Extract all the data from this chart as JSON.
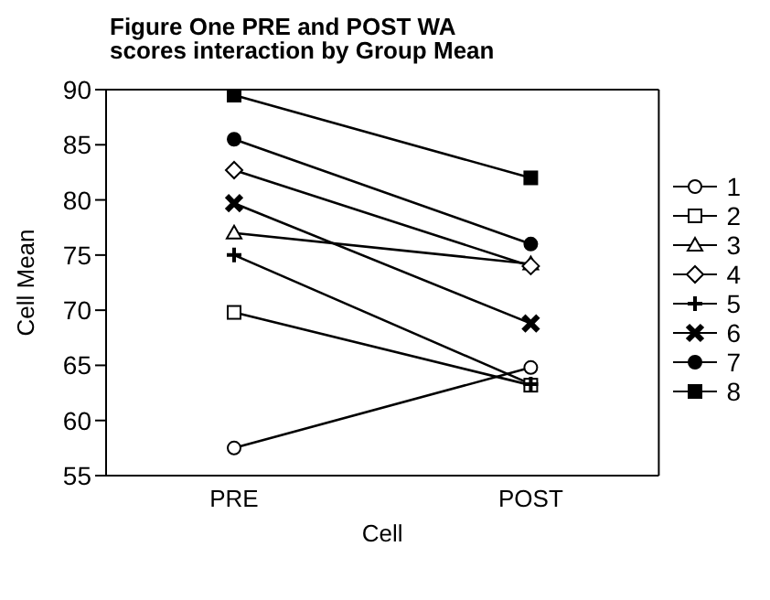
{
  "chart_data": {
    "type": "line",
    "title": "Figure One  PRE and POST WA scores interaction by Group Mean",
    "xlabel": "Cell",
    "ylabel": "Cell Mean",
    "categories": [
      "PRE",
      "POST"
    ],
    "series": [
      {
        "name": "1",
        "color": "#000000",
        "marker": "circle",
        "values": [
          57.5,
          64.8
        ]
      },
      {
        "name": "2",
        "color": "#000000",
        "marker": "square",
        "values": [
          69.8,
          63.2
        ]
      },
      {
        "name": "3",
        "color": "#000000",
        "marker": "triangle",
        "values": [
          77,
          74.2
        ]
      },
      {
        "name": "4",
        "color": "#000000",
        "marker": "diamond",
        "values": [
          82.7,
          74
        ]
      },
      {
        "name": "5",
        "color": "#000000",
        "marker": "cross",
        "values": [
          75,
          63.3
        ]
      },
      {
        "name": "6",
        "color": "#000000",
        "marker": "cross",
        "values": [
          79.7,
          68.8
        ]
      },
      {
        "name": "7",
        "color": "#000000",
        "marker": "circle",
        "values": [
          85.5,
          76
        ]
      },
      {
        "name": "8",
        "color": "#000000",
        "marker": "square",
        "values": [
          89.5,
          82
        ]
      }
    ],
    "ylim": [
      55,
      90
    ],
    "yticks": [
      55,
      60,
      65,
      70,
      75,
      80,
      85,
      90
    ],
    "grid": false,
    "legend": "right",
    "line_style": "solid"
  }
}
